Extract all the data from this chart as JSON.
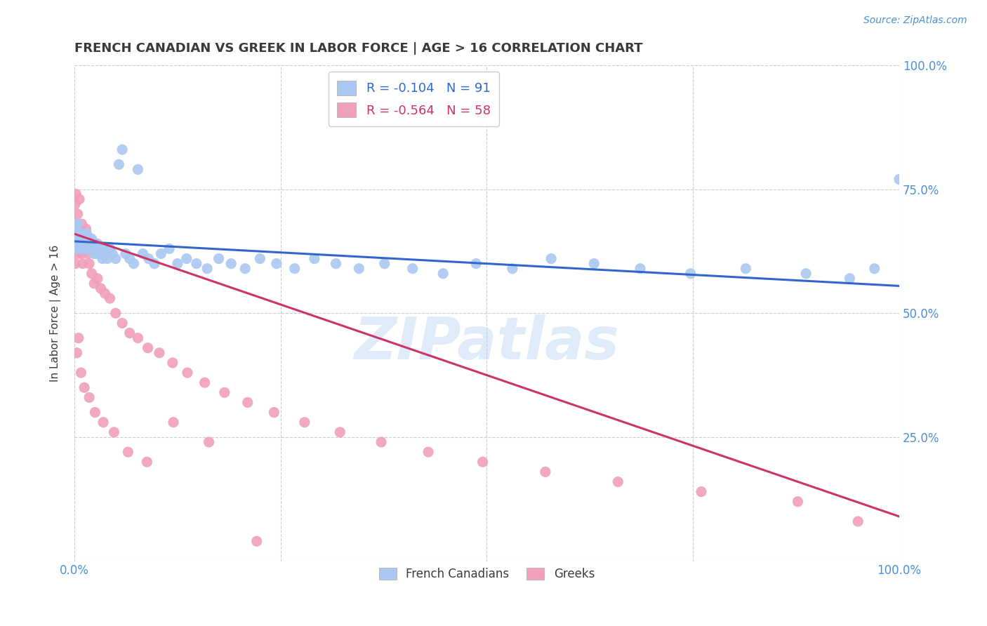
{
  "title": "FRENCH CANADIAN VS GREEK IN LABOR FORCE | AGE > 16 CORRELATION CHART",
  "source_text": "Source: ZipAtlas.com",
  "ylabel": "In Labor Force | Age > 16",
  "title_color": "#3a3a3a",
  "title_fontsize": 13,
  "axis_color": "#4a90d9",
  "background_color": "#ffffff",
  "watermark": "ZIPatlas",
  "french_canadian": {
    "color": "#aac8f0",
    "label": "French Canadians",
    "R": -0.104,
    "N": 91,
    "line_color": "#3366cc",
    "x": [
      0.0,
      0.001,
      0.001,
      0.002,
      0.002,
      0.003,
      0.003,
      0.004,
      0.004,
      0.005,
      0.005,
      0.006,
      0.006,
      0.007,
      0.007,
      0.008,
      0.008,
      0.009,
      0.009,
      0.01,
      0.01,
      0.011,
      0.011,
      0.012,
      0.012,
      0.013,
      0.013,
      0.014,
      0.015,
      0.015,
      0.016,
      0.016,
      0.017,
      0.018,
      0.019,
      0.02,
      0.021,
      0.022,
      0.023,
      0.024,
      0.025,
      0.026,
      0.027,
      0.028,
      0.03,
      0.032,
      0.034,
      0.036,
      0.038,
      0.04,
      0.043,
      0.046,
      0.05,
      0.054,
      0.058,
      0.062,
      0.067,
      0.072,
      0.077,
      0.083,
      0.09,
      0.097,
      0.105,
      0.115,
      0.125,
      0.136,
      0.148,
      0.161,
      0.175,
      0.19,
      0.207,
      0.225,
      0.245,
      0.267,
      0.291,
      0.317,
      0.345,
      0.376,
      0.41,
      0.447,
      0.487,
      0.531,
      0.578,
      0.63,
      0.686,
      0.747,
      0.814,
      0.887,
      0.94,
      0.97,
      1.0
    ],
    "y": [
      0.66,
      0.64,
      0.68,
      0.65,
      0.67,
      0.63,
      0.66,
      0.64,
      0.68,
      0.65,
      0.63,
      0.66,
      0.64,
      0.65,
      0.63,
      0.66,
      0.64,
      0.65,
      0.63,
      0.65,
      0.64,
      0.66,
      0.63,
      0.65,
      0.64,
      0.63,
      0.65,
      0.64,
      0.66,
      0.63,
      0.65,
      0.64,
      0.63,
      0.65,
      0.64,
      0.63,
      0.65,
      0.64,
      0.63,
      0.62,
      0.64,
      0.63,
      0.62,
      0.64,
      0.63,
      0.62,
      0.61,
      0.63,
      0.62,
      0.61,
      0.63,
      0.62,
      0.61,
      0.8,
      0.83,
      0.62,
      0.61,
      0.6,
      0.79,
      0.62,
      0.61,
      0.6,
      0.62,
      0.63,
      0.6,
      0.61,
      0.6,
      0.59,
      0.61,
      0.6,
      0.59,
      0.61,
      0.6,
      0.59,
      0.61,
      0.6,
      0.59,
      0.6,
      0.59,
      0.58,
      0.6,
      0.59,
      0.61,
      0.6,
      0.59,
      0.58,
      0.59,
      0.58,
      0.57,
      0.59,
      0.77
    ]
  },
  "greek": {
    "color": "#f0a0b8",
    "label": "Greeks",
    "R": -0.564,
    "N": 58,
    "line_color": "#cc3366",
    "x": [
      0.0,
      0.001,
      0.001,
      0.002,
      0.003,
      0.003,
      0.004,
      0.005,
      0.006,
      0.007,
      0.008,
      0.009,
      0.01,
      0.012,
      0.014,
      0.016,
      0.018,
      0.021,
      0.024,
      0.028,
      0.032,
      0.037,
      0.043,
      0.05,
      0.058,
      0.067,
      0.077,
      0.089,
      0.103,
      0.119,
      0.137,
      0.158,
      0.182,
      0.21,
      0.242,
      0.279,
      0.322,
      0.372,
      0.429,
      0.495,
      0.571,
      0.659,
      0.76,
      0.877,
      0.95,
      0.003,
      0.005,
      0.008,
      0.012,
      0.018,
      0.025,
      0.035,
      0.048,
      0.065,
      0.088,
      0.12,
      0.163,
      0.221
    ],
    "y": [
      0.66,
      0.72,
      0.6,
      0.74,
      0.68,
      0.62,
      0.7,
      0.65,
      0.73,
      0.64,
      0.62,
      0.68,
      0.6,
      0.64,
      0.67,
      0.62,
      0.6,
      0.58,
      0.56,
      0.57,
      0.55,
      0.54,
      0.53,
      0.5,
      0.48,
      0.46,
      0.45,
      0.43,
      0.42,
      0.4,
      0.38,
      0.36,
      0.34,
      0.32,
      0.3,
      0.28,
      0.26,
      0.24,
      0.22,
      0.2,
      0.18,
      0.16,
      0.14,
      0.12,
      0.08,
      0.42,
      0.45,
      0.38,
      0.35,
      0.33,
      0.3,
      0.28,
      0.26,
      0.22,
      0.2,
      0.28,
      0.24,
      0.04
    ]
  },
  "fc_regression": {
    "slope": -0.09,
    "intercept": 0.645
  },
  "gr_regression": {
    "slope": -0.57,
    "intercept": 0.66
  },
  "xlim": [
    0.0,
    1.0
  ],
  "ylim": [
    0.0,
    1.0
  ],
  "xtick_positions": [
    0.0,
    0.25,
    0.5,
    0.75,
    1.0
  ],
  "xtick_labels": [
    "0.0%",
    "",
    "",
    "",
    "100.0%"
  ],
  "ytick_positions": [
    0.0,
    0.25,
    0.5,
    0.75,
    1.0
  ],
  "ytick_labels_right": [
    "",
    "25.0%",
    "50.0%",
    "75.0%",
    "100.0%"
  ],
  "grid_color": "#cccccc",
  "grid_linestyle": "--"
}
